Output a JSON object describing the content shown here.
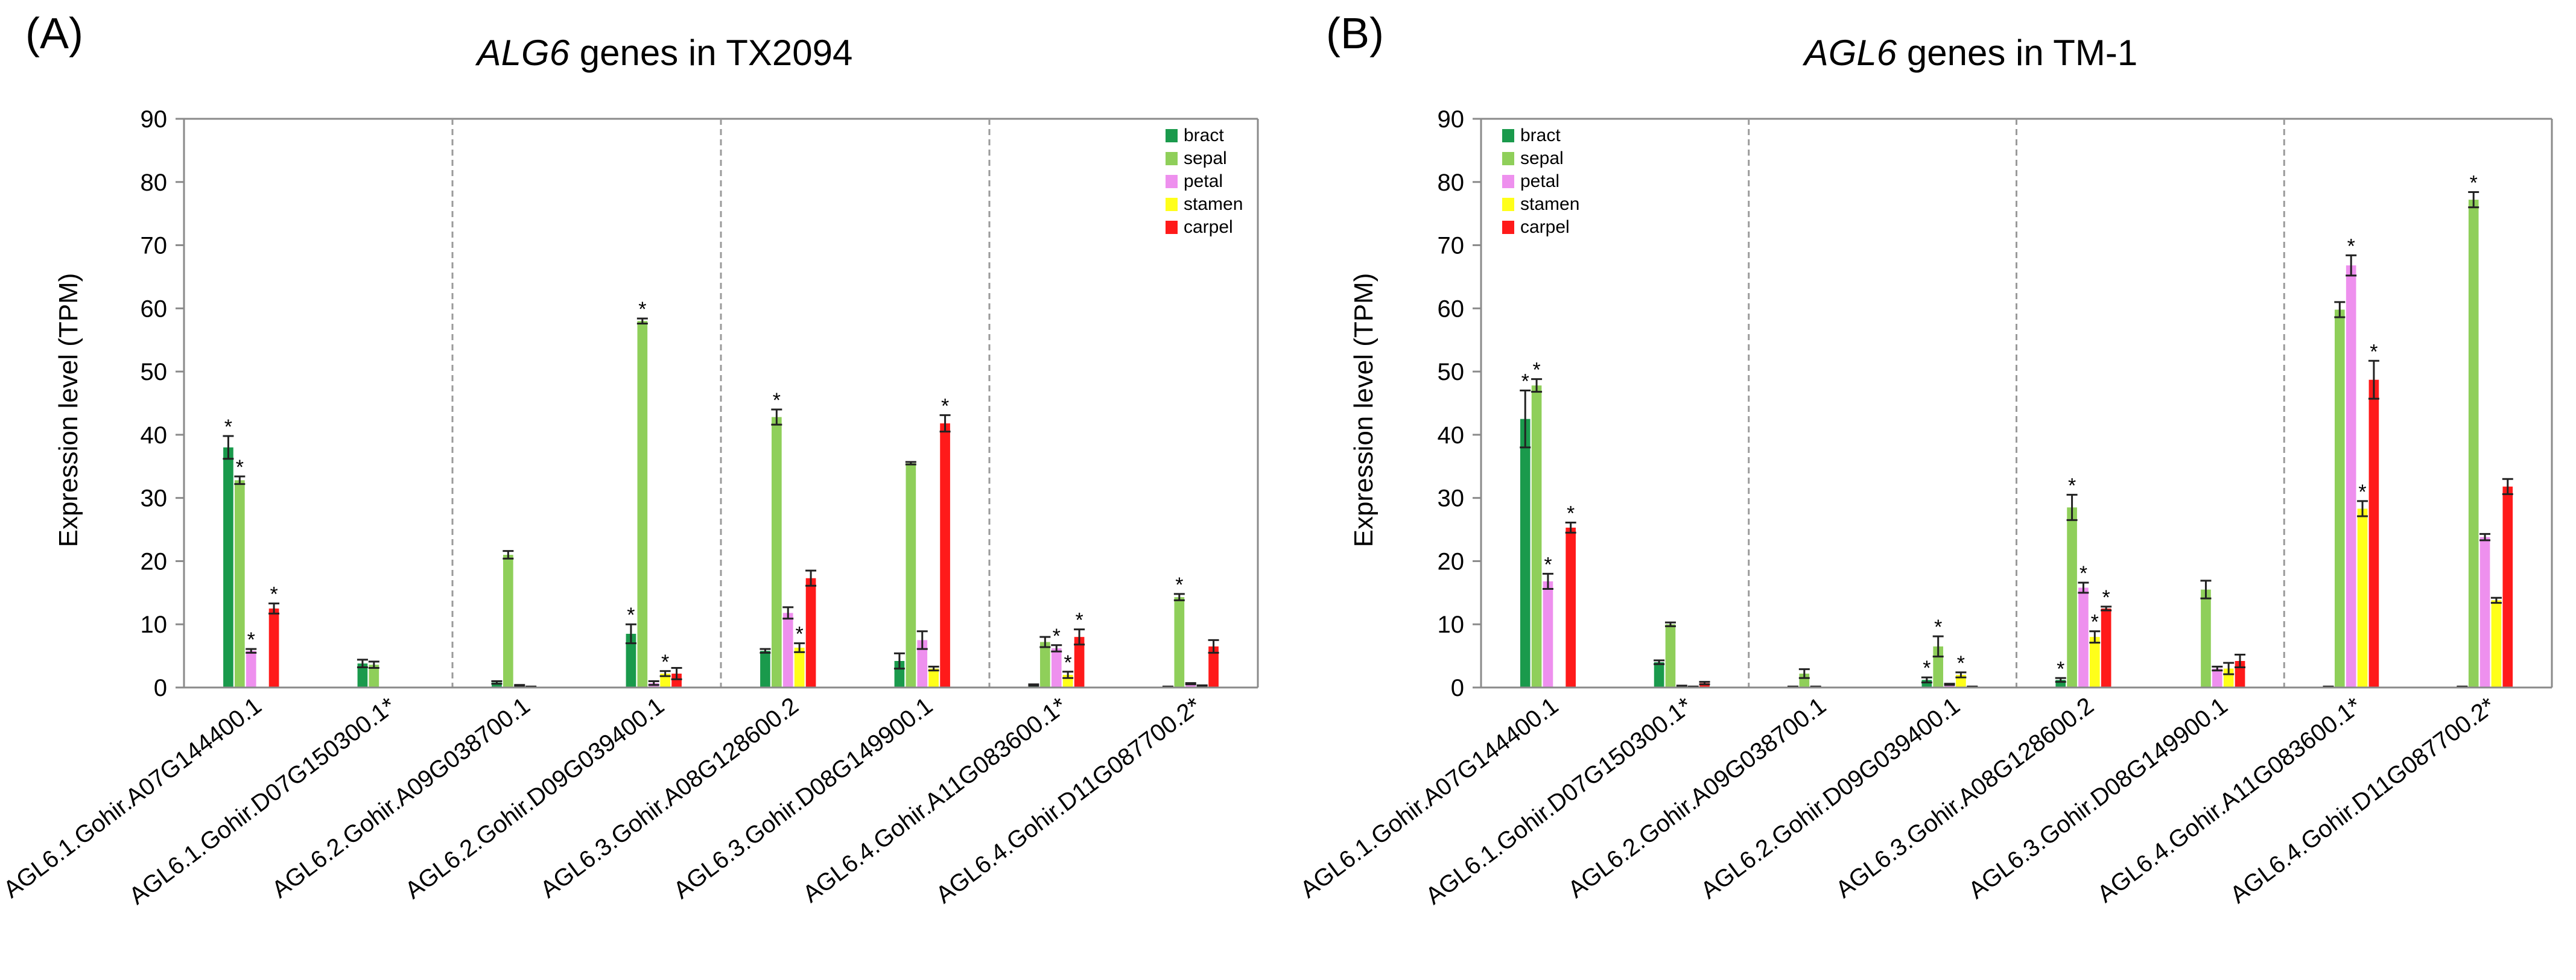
{
  "colors": {
    "bract": "#1a9a4c",
    "sepal": "#8fcf5a",
    "petal": "#ee90ee",
    "stamen": "#ffff1a",
    "carpel": "#ff1a1a",
    "axis": "#8a8a8a",
    "divider": "#9a9a9a",
    "text": "#000000"
  },
  "chart_data": [
    {
      "type": "bar",
      "panel_label": "(A)",
      "title_gene": "ALG6",
      "title_rest": " genes in TX2094",
      "ylabel": "Expression level (TPM)",
      "ylim": [
        0,
        90
      ],
      "yticks": [
        0,
        10,
        20,
        30,
        40,
        50,
        60,
        70,
        80,
        90
      ],
      "grid": false,
      "legend_position": "top-right",
      "categories": [
        "AGL6.1.Gohir.A07G144400.1",
        "AGL6.1.Gohir.D07G150300.1*",
        "AGL6.2.Gohir.A09G038700.1",
        "AGL6.2.Gohir.D09G039400.1",
        "AGL6.3.Gohir.A08G128600.2",
        "AGL6.3.Gohir.D08G149900.1",
        "AGL6.4.Gohir.A11G083600.1*",
        "AGL6.4.Gohir.D11G087700.2*"
      ],
      "dividers_after": [
        2,
        4,
        6
      ],
      "series": [
        {
          "name": "bract",
          "values": [
            38,
            3.8,
            0.8,
            8.5,
            5.8,
            4.2,
            0.4,
            0.1
          ],
          "errors": [
            1.8,
            0.6,
            0.2,
            1.5,
            0.3,
            1.2,
            0.1,
            0.05
          ],
          "stars": [
            true,
            false,
            false,
            true,
            false,
            false,
            false,
            false
          ]
        },
        {
          "name": "sepal",
          "values": [
            32.8,
            3.6,
            21,
            58,
            42.8,
            35.5,
            7.2,
            14.3
          ],
          "errors": [
            0.6,
            0.5,
            0.6,
            0.4,
            1.2,
            0.2,
            0.8,
            0.5
          ],
          "stars": [
            true,
            false,
            false,
            true,
            true,
            false,
            false,
            true
          ]
        },
        {
          "name": "petal",
          "values": [
            5.8,
            0,
            0.3,
            0.7,
            11.8,
            7.5,
            6.2,
            0.6
          ],
          "errors": [
            0.3,
            0,
            0.1,
            0.3,
            0.9,
            1.4,
            0.5,
            0.1
          ],
          "stars": [
            true,
            false,
            false,
            false,
            false,
            false,
            true,
            false
          ]
        },
        {
          "name": "stamen",
          "values": [
            0,
            0,
            0.1,
            2.2,
            6.3,
            3,
            2,
            0.3
          ],
          "errors": [
            0,
            0,
            0.05,
            0.4,
            0.7,
            0.3,
            0.5,
            0.05
          ],
          "stars": [
            false,
            false,
            false,
            true,
            true,
            false,
            true,
            false
          ]
        },
        {
          "name": "carpel",
          "values": [
            12.5,
            0,
            0,
            2.2,
            17.3,
            41.8,
            8,
            6.5
          ],
          "errors": [
            0.8,
            0,
            0,
            0.9,
            1.2,
            1.3,
            1.2,
            1
          ],
          "stars": [
            true,
            false,
            false,
            false,
            false,
            true,
            true,
            false
          ]
        }
      ]
    },
    {
      "type": "bar",
      "panel_label": "(B)",
      "title_gene": "AGL6",
      "title_rest": " genes in TM-1",
      "ylabel": "Expression level (TPM)",
      "ylim": [
        0,
        90
      ],
      "yticks": [
        0,
        10,
        20,
        30,
        40,
        50,
        60,
        70,
        80,
        90
      ],
      "grid": false,
      "legend_position": "top-left",
      "categories": [
        "AGL6.1.Gohir.A07G144400.1",
        "AGL6.1.Gohir.D07G150300.1*",
        "AGL6.2.Gohir.A09G038700.1",
        "AGL6.2.Gohir.D09G039400.1",
        "AGL6.3.Gohir.A08G128600.2",
        "AGL6.3.Gohir.D08G149900.1",
        "AGL6.4.Gohir.A11G083600.1*",
        "AGL6.4.Gohir.D11G087700.2*"
      ],
      "dividers_after": [
        2,
        4,
        6
      ],
      "series": [
        {
          "name": "bract",
          "values": [
            42.5,
            4,
            0.1,
            1.2,
            1.2,
            0,
            0.1,
            0.1
          ],
          "errors": [
            4.5,
            0.3,
            0.05,
            0.4,
            0.3,
            0,
            0.05,
            0.05
          ],
          "stars": [
            true,
            false,
            false,
            true,
            true,
            false,
            false,
            false
          ]
        },
        {
          "name": "sepal",
          "values": [
            47.8,
            10,
            2.2,
            6.5,
            28.5,
            15.5,
            59.8,
            77.2
          ],
          "errors": [
            1,
            0.3,
            0.7,
            1.6,
            2,
            1.4,
            1.2,
            1.2
          ],
          "stars": [
            true,
            false,
            false,
            true,
            true,
            false,
            false,
            true
          ]
        },
        {
          "name": "petal",
          "values": [
            16.8,
            0.2,
            0.1,
            0.5,
            15.8,
            3,
            66.8,
            23.8
          ],
          "errors": [
            1.2,
            0.1,
            0.05,
            0.1,
            0.8,
            0.3,
            1.6,
            0.5
          ],
          "stars": [
            true,
            false,
            false,
            false,
            true,
            false,
            true,
            false
          ]
        },
        {
          "name": "stamen",
          "values": [
            0,
            0.1,
            0,
            2,
            8,
            3,
            28.3,
            13.8
          ],
          "errors": [
            0,
            0.05,
            0,
            0.4,
            0.9,
            0.9,
            1.2,
            0.4
          ],
          "stars": [
            false,
            false,
            false,
            true,
            true,
            false,
            true,
            false
          ]
        },
        {
          "name": "carpel",
          "values": [
            25.3,
            0.7,
            0,
            0.1,
            12.5,
            4.2,
            48.7,
            31.8
          ],
          "errors": [
            0.8,
            0.2,
            0,
            0.05,
            0.3,
            1,
            3,
            1.2
          ],
          "stars": [
            true,
            false,
            false,
            false,
            true,
            false,
            true,
            false
          ]
        }
      ]
    }
  ]
}
